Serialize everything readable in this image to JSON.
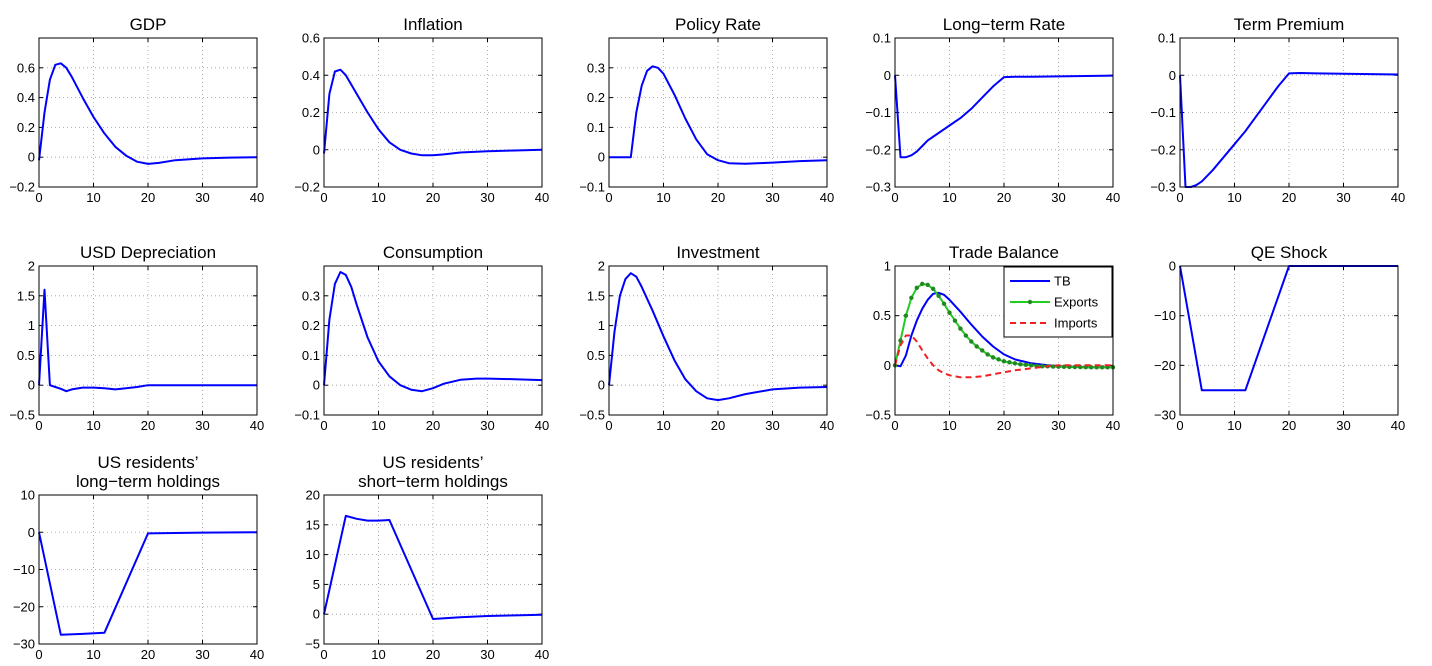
{
  "chart_data": [
    {
      "type": "line",
      "title": "GDP",
      "xlim": [
        0,
        40
      ],
      "ylim": [
        -0.2,
        0.8
      ],
      "xticks": [
        0,
        10,
        20,
        30,
        40
      ],
      "xtick_labels": [
        "0",
        "10",
        "20",
        "30",
        "40"
      ],
      "yticks": [
        -0.2,
        0,
        0.2,
        0.4,
        0.6
      ],
      "ytick_labels": [
        "−0.2",
        "0",
        "0.2",
        "0.4",
        "0.6"
      ],
      "grid": true,
      "series": [
        {
          "color": "#0000ff",
          "style": "solid",
          "markers": false,
          "x": [
            0,
            1,
            2,
            3,
            4,
            5,
            6,
            8,
            10,
            12,
            14,
            16,
            18,
            20,
            22,
            25,
            30,
            35,
            40
          ],
          "y": [
            -0.02,
            0.3,
            0.52,
            0.62,
            0.63,
            0.6,
            0.54,
            0.4,
            0.27,
            0.16,
            0.07,
            0.01,
            -0.03,
            -0.045,
            -0.038,
            -0.02,
            -0.008,
            -0.003,
            0
          ]
        }
      ]
    },
    {
      "type": "line",
      "title": "Inflation",
      "xlim": [
        0,
        40
      ],
      "ylim": [
        -0.2,
        0.6
      ],
      "xticks": [
        0,
        10,
        20,
        30,
        40
      ],
      "xtick_labels": [
        "0",
        "10",
        "20",
        "30",
        "40"
      ],
      "yticks": [
        -0.2,
        0,
        0.2,
        0.4,
        0.6
      ],
      "ytick_labels": [
        "−0.2",
        "0",
        "0.2",
        "0.4",
        "0.6"
      ],
      "grid": true,
      "series": [
        {
          "color": "#0000ff",
          "style": "solid",
          "markers": false,
          "x": [
            0,
            1,
            2,
            3,
            4,
            5,
            6,
            8,
            10,
            12,
            14,
            16,
            18,
            20,
            22,
            25,
            30,
            35,
            40
          ],
          "y": [
            -0.02,
            0.3,
            0.42,
            0.43,
            0.4,
            0.35,
            0.3,
            0.2,
            0.11,
            0.04,
            0.0,
            -0.02,
            -0.03,
            -0.03,
            -0.025,
            -0.015,
            -0.008,
            -0.004,
            0
          ]
        }
      ]
    },
    {
      "type": "line",
      "title": "Policy Rate",
      "xlim": [
        0,
        40
      ],
      "ylim": [
        -0.1,
        0.4
      ],
      "xticks": [
        0,
        10,
        20,
        30,
        40
      ],
      "xtick_labels": [
        "0",
        "10",
        "20",
        "30",
        "40"
      ],
      "yticks": [
        -0.1,
        0,
        0.1,
        0.2,
        0.3
      ],
      "ytick_labels": [
        "−0.1",
        "0",
        "0.1",
        "0.2",
        "0.3"
      ],
      "grid": true,
      "series": [
        {
          "color": "#0000ff",
          "style": "solid",
          "markers": false,
          "x": [
            0,
            4,
            5,
            6,
            7,
            8,
            9,
            10,
            12,
            14,
            16,
            18,
            20,
            22,
            25,
            30,
            35,
            40
          ],
          "y": [
            0,
            0,
            0.15,
            0.24,
            0.29,
            0.305,
            0.3,
            0.28,
            0.21,
            0.13,
            0.06,
            0.01,
            -0.01,
            -0.02,
            -0.022,
            -0.018,
            -0.013,
            -0.01
          ]
        }
      ]
    },
    {
      "type": "line",
      "title": "Long−term Rate",
      "xlim": [
        0,
        40
      ],
      "ylim": [
        -0.3,
        0.1
      ],
      "xticks": [
        0,
        10,
        20,
        30,
        40
      ],
      "xtick_labels": [
        "0",
        "10",
        "20",
        "30",
        "40"
      ],
      "yticks": [
        -0.3,
        -0.2,
        -0.1,
        0,
        0.1
      ],
      "ytick_labels": [
        "−0.3",
        "−0.2",
        "−0.1",
        "0",
        "0.1"
      ],
      "grid": true,
      "series": [
        {
          "color": "#0000ff",
          "style": "solid",
          "markers": false,
          "x": [
            0,
            1,
            2,
            3,
            4,
            5,
            6,
            8,
            10,
            12,
            14,
            16,
            18,
            20,
            22,
            25,
            30,
            35,
            40
          ],
          "y": [
            0,
            -0.22,
            -0.22,
            -0.215,
            -0.205,
            -0.19,
            -0.175,
            -0.155,
            -0.135,
            -0.115,
            -0.09,
            -0.06,
            -0.03,
            -0.005,
            -0.004,
            -0.004,
            -0.003,
            -0.002,
            -0.001
          ]
        }
      ]
    },
    {
      "type": "line",
      "title": "Term Premium",
      "xlim": [
        0,
        40
      ],
      "ylim": [
        -0.3,
        0.1
      ],
      "xticks": [
        0,
        10,
        20,
        30,
        40
      ],
      "xtick_labels": [
        "0",
        "10",
        "20",
        "30",
        "40"
      ],
      "yticks": [
        -0.3,
        -0.2,
        -0.1,
        0,
        0.1
      ],
      "ytick_labels": [
        "−0.3",
        "−0.2",
        "−0.1",
        "0",
        "0.1"
      ],
      "grid": true,
      "series": [
        {
          "color": "#0000ff",
          "style": "solid",
          "markers": false,
          "x": [
            0,
            1,
            2,
            3,
            4,
            6,
            8,
            10,
            12,
            14,
            16,
            18,
            20,
            22,
            25,
            30,
            35,
            40
          ],
          "y": [
            0,
            -0.3,
            -0.3,
            -0.295,
            -0.285,
            -0.255,
            -0.22,
            -0.185,
            -0.15,
            -0.11,
            -0.07,
            -0.03,
            0.005,
            0.006,
            0.005,
            0.004,
            0.003,
            0.002
          ]
        }
      ]
    },
    {
      "type": "line",
      "title": "USD Depreciation",
      "xlim": [
        0,
        40
      ],
      "ylim": [
        -0.5,
        2
      ],
      "xticks": [
        0,
        10,
        20,
        30,
        40
      ],
      "xtick_labels": [
        "0",
        "10",
        "20",
        "30",
        "40"
      ],
      "yticks": [
        -0.5,
        0,
        0.5,
        1,
        1.5,
        2
      ],
      "ytick_labels": [
        "−0.5",
        "0",
        "0.5",
        "1",
        "1.5",
        "2"
      ],
      "grid": true,
      "series": [
        {
          "color": "#0000ff",
          "style": "solid",
          "markers": false,
          "x": [
            0,
            1,
            2,
            3,
            4,
            5,
            6,
            8,
            10,
            12,
            14,
            16,
            18,
            20,
            22,
            25,
            30,
            35,
            40
          ],
          "y": [
            0,
            1.6,
            0,
            -0.03,
            -0.06,
            -0.1,
            -0.07,
            -0.04,
            -0.04,
            -0.05,
            -0.07,
            -0.05,
            -0.03,
            0,
            0,
            0,
            0,
            0,
            0
          ]
        }
      ]
    },
    {
      "type": "line",
      "title": "Consumption",
      "xlim": [
        0,
        40
      ],
      "ylim": [
        -0.1,
        0.4
      ],
      "xticks": [
        0,
        10,
        20,
        30,
        40
      ],
      "xtick_labels": [
        "0",
        "10",
        "20",
        "30",
        "40"
      ],
      "yticks": [
        -0.1,
        0,
        0.1,
        0.2,
        0.3
      ],
      "ytick_labels": [
        "−0.1",
        "0",
        "0.1",
        "0.2",
        "0.3"
      ],
      "grid": true,
      "series": [
        {
          "color": "#0000ff",
          "style": "solid",
          "markers": false,
          "x": [
            0,
            1,
            2,
            3,
            4,
            5,
            6,
            8,
            10,
            12,
            14,
            16,
            18,
            20,
            22,
            25,
            28,
            30,
            35,
            40
          ],
          "y": [
            0,
            0.22,
            0.34,
            0.38,
            0.37,
            0.33,
            0.27,
            0.16,
            0.08,
            0.03,
            0.0,
            -0.015,
            -0.02,
            -0.01,
            0.005,
            0.018,
            0.022,
            0.022,
            0.02,
            0.017
          ]
        }
      ]
    },
    {
      "type": "line",
      "title": "Investment",
      "xlim": [
        0,
        40
      ],
      "ylim": [
        -0.5,
        2
      ],
      "xticks": [
        0,
        10,
        20,
        30,
        40
      ],
      "xtick_labels": [
        "0",
        "10",
        "20",
        "30",
        "40"
      ],
      "yticks": [
        -0.5,
        0,
        0.5,
        1,
        1.5,
        2
      ],
      "ytick_labels": [
        "−0.5",
        "0",
        "0.5",
        "1",
        "1.5",
        "2"
      ],
      "grid": true,
      "series": [
        {
          "color": "#0000ff",
          "style": "solid",
          "markers": false,
          "x": [
            0,
            1,
            2,
            3,
            4,
            5,
            6,
            8,
            10,
            12,
            14,
            16,
            18,
            20,
            22,
            25,
            30,
            35,
            40
          ],
          "y": [
            0,
            0.9,
            1.5,
            1.78,
            1.88,
            1.82,
            1.65,
            1.25,
            0.82,
            0.42,
            0.1,
            -0.1,
            -0.22,
            -0.25,
            -0.22,
            -0.15,
            -0.07,
            -0.04,
            -0.03
          ]
        }
      ]
    },
    {
      "type": "line",
      "title": "Trade Balance",
      "xlim": [
        0,
        40
      ],
      "ylim": [
        -0.5,
        1
      ],
      "xticks": [
        0,
        10,
        20,
        30,
        40
      ],
      "xtick_labels": [
        "0",
        "10",
        "20",
        "30",
        "40"
      ],
      "yticks": [
        -0.5,
        0,
        0.5,
        1
      ],
      "ytick_labels": [
        "−0.5",
        "0",
        "0.5",
        "1"
      ],
      "grid": true,
      "legend": {
        "placement": "top-right",
        "entries": [
          "TB",
          "Exports",
          "Imports"
        ]
      },
      "series": [
        {
          "name": "TB",
          "color": "#0000ff",
          "style": "solid",
          "markers": false,
          "x": [
            0,
            1,
            2,
            3,
            4,
            5,
            6,
            7,
            8,
            9,
            10,
            12,
            14,
            16,
            18,
            20,
            22,
            25,
            28,
            30,
            35,
            40
          ],
          "y": [
            0,
            -0.01,
            0.1,
            0.3,
            0.45,
            0.57,
            0.66,
            0.72,
            0.73,
            0.71,
            0.66,
            0.54,
            0.41,
            0.29,
            0.19,
            0.11,
            0.06,
            0.02,
            0.0,
            -0.01,
            -0.02,
            -0.02
          ]
        },
        {
          "name": "Exports",
          "color": "#22cc22",
          "style": "solid",
          "markers": true,
          "x": [
            0,
            1,
            2,
            3,
            4,
            5,
            6,
            7,
            8,
            9,
            10,
            11,
            12,
            13,
            14,
            15,
            16,
            17,
            18,
            19,
            20,
            21,
            22,
            23,
            24,
            25,
            26,
            27,
            28,
            29,
            30,
            31,
            32,
            33,
            34,
            35,
            36,
            37,
            38,
            39,
            40
          ],
          "y": [
            0,
            0.25,
            0.5,
            0.68,
            0.78,
            0.82,
            0.81,
            0.77,
            0.7,
            0.62,
            0.53,
            0.45,
            0.37,
            0.3,
            0.24,
            0.19,
            0.15,
            0.11,
            0.08,
            0.06,
            0.04,
            0.03,
            0.02,
            0.01,
            0.005,
            0.0,
            -0.005,
            -0.01,
            -0.01,
            -0.012,
            -0.014,
            -0.015,
            -0.016,
            -0.017,
            -0.018,
            -0.019,
            -0.02,
            -0.02,
            -0.02,
            -0.02,
            -0.02
          ]
        },
        {
          "name": "Imports",
          "color": "#ee2222",
          "style": "dashed",
          "markers": false,
          "x": [
            0,
            1,
            2,
            3,
            4,
            5,
            6,
            7,
            8,
            9,
            10,
            12,
            14,
            16,
            18,
            20,
            22,
            25,
            28,
            30,
            35,
            40
          ],
          "y": [
            0,
            0.2,
            0.3,
            0.3,
            0.24,
            0.15,
            0.07,
            0.0,
            -0.05,
            -0.08,
            -0.1,
            -0.12,
            -0.12,
            -0.11,
            -0.09,
            -0.07,
            -0.05,
            -0.03,
            -0.01,
            0.0,
            0.0,
            0.0
          ]
        }
      ]
    },
    {
      "type": "line",
      "title": "QE Shock",
      "xlim": [
        0,
        40
      ],
      "ylim": [
        -30,
        0
      ],
      "xticks": [
        0,
        10,
        20,
        30,
        40
      ],
      "xtick_labels": [
        "0",
        "10",
        "20",
        "30",
        "40"
      ],
      "yticks": [
        -30,
        -20,
        -10,
        0
      ],
      "ytick_labels": [
        "−30",
        "−20",
        "−10",
        "0"
      ],
      "grid": true,
      "series": [
        {
          "color": "#0000ff",
          "style": "solid",
          "markers": false,
          "x": [
            0,
            4,
            12,
            20,
            40
          ],
          "y": [
            0,
            -25,
            -25,
            0,
            0
          ]
        }
      ]
    },
    {
      "type": "line",
      "title": [
        "US residents’",
        "long−term holdings"
      ],
      "xlim": [
        0,
        40
      ],
      "ylim": [
        -30,
        10
      ],
      "xticks": [
        0,
        10,
        20,
        30,
        40
      ],
      "xtick_labels": [
        "0",
        "10",
        "20",
        "30",
        "40"
      ],
      "yticks": [
        -30,
        -20,
        -10,
        0,
        10
      ],
      "ytick_labels": [
        "−30",
        "−20",
        "−10",
        "0",
        "10"
      ],
      "grid": true,
      "series": [
        {
          "color": "#0000ff",
          "style": "solid",
          "markers": false,
          "x": [
            0,
            4,
            8,
            12,
            20,
            25,
            30,
            40
          ],
          "y": [
            0,
            -27.5,
            -27.3,
            -27,
            -0.3,
            -0.2,
            -0.1,
            0
          ]
        }
      ]
    },
    {
      "type": "line",
      "title": [
        "US residents’",
        "short−term holdings"
      ],
      "xlim": [
        0,
        40
      ],
      "ylim": [
        -5,
        20
      ],
      "xticks": [
        0,
        10,
        20,
        30,
        40
      ],
      "xtick_labels": [
        "0",
        "10",
        "20",
        "30",
        "40"
      ],
      "yticks": [
        -5,
        0,
        5,
        10,
        15,
        20
      ],
      "ytick_labels": [
        "−5",
        "0",
        "5",
        "10",
        "15",
        "20"
      ],
      "grid": true,
      "series": [
        {
          "color": "#0000ff",
          "style": "solid",
          "markers": false,
          "x": [
            0,
            4,
            6,
            8,
            10,
            12,
            20,
            25,
            30,
            35,
            40
          ],
          "y": [
            0,
            16.5,
            16,
            15.7,
            15.7,
            15.8,
            -0.8,
            -0.5,
            -0.3,
            -0.2,
            -0.1
          ]
        }
      ]
    }
  ]
}
